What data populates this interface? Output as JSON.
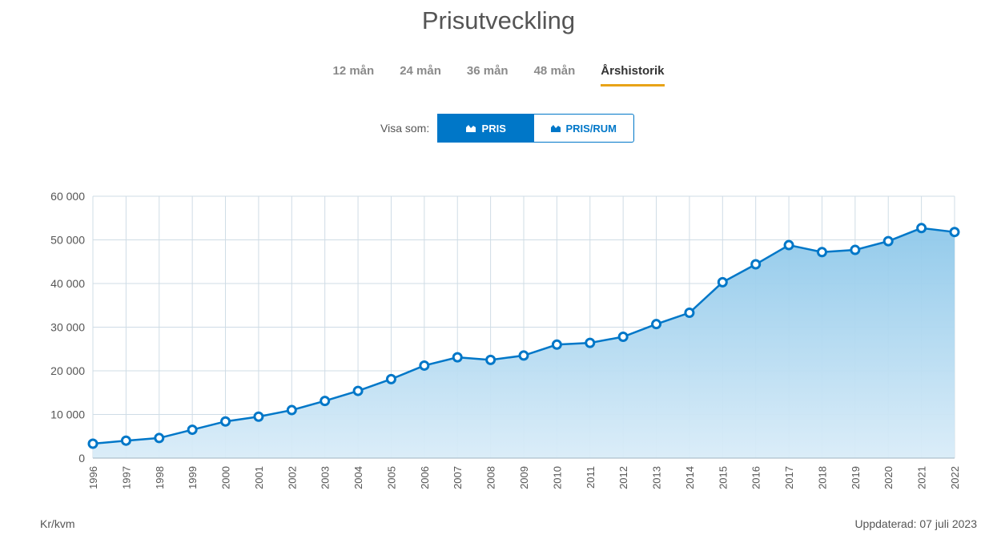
{
  "title": "Prisutveckling",
  "tabs": [
    {
      "label": "12 mån",
      "active": false
    },
    {
      "label": "24 mån",
      "active": false
    },
    {
      "label": "36 mån",
      "active": false
    },
    {
      "label": "48 mån",
      "active": false
    },
    {
      "label": "Årshistorik",
      "active": true
    }
  ],
  "view_toggle": {
    "label": "Visa som:",
    "options": [
      {
        "label": "PRIS",
        "icon": "area-chart-icon",
        "selected": true
      },
      {
        "label": "PRIS/RUM",
        "icon": "area-chart-icon",
        "selected": false
      }
    ]
  },
  "colors": {
    "accent": "#0077c8",
    "tab_underline": "#e8a317",
    "area_top": "#8ec8ea",
    "area_bottom": "#d9ecf8",
    "grid": "#cfdce6"
  },
  "chart_data": {
    "type": "area",
    "x": [
      "1996",
      "1997",
      "1998",
      "1999",
      "2000",
      "2001",
      "2002",
      "2003",
      "2004",
      "2005",
      "2006",
      "2007",
      "2008",
      "2009",
      "2010",
      "2011",
      "2012",
      "2013",
      "2014",
      "2015",
      "2016",
      "2017",
      "2018",
      "2019",
      "2020",
      "2021",
      "2022"
    ],
    "values": [
      3300,
      4000,
      4600,
      6500,
      8400,
      9500,
      11000,
      13100,
      15400,
      18100,
      21200,
      23100,
      22500,
      23500,
      26000,
      26400,
      27800,
      30700,
      33300,
      40300,
      44400,
      48800,
      47200,
      47700,
      49700,
      52700,
      51800
    ],
    "ylim": [
      0,
      60000
    ],
    "yticks": [
      "0",
      "10 000",
      "20 000",
      "30 000",
      "40 000",
      "50 000",
      "60 000"
    ],
    "grid": true
  },
  "footer": {
    "unit": "Kr/kvm",
    "updated": "Uppdaterad: 07 juli 2023"
  }
}
